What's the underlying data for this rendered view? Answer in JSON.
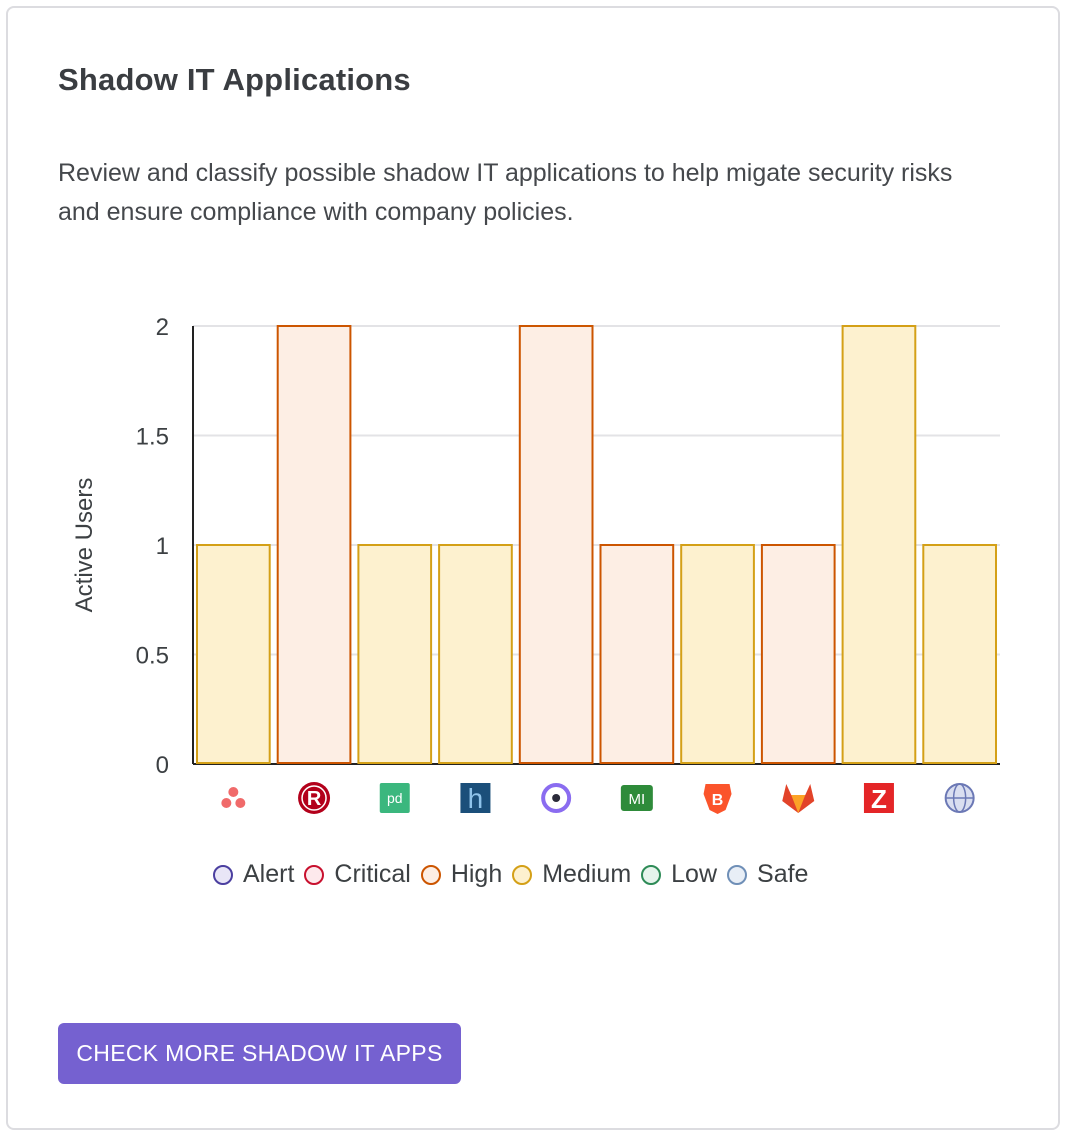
{
  "card": {
    "title": "Shadow IT Applications",
    "description": "Review and classify possible shadow IT applications to help migate security risks and ensure compliance with company policies.",
    "button_label": "CHECK MORE SHADOW IT APPS"
  },
  "legend": [
    {
      "label": "Alert",
      "stroke": "#4b3fa0",
      "fill": "#e9e6f7"
    },
    {
      "label": "Critical",
      "stroke": "#c8102e",
      "fill": "#fde9ec"
    },
    {
      "label": "High",
      "stroke": "#cc5500",
      "fill": "#fdeee4"
    },
    {
      "label": "Medium",
      "stroke": "#d4a017",
      "fill": "#fdf1cf"
    },
    {
      "label": "Low",
      "stroke": "#2e8b57",
      "fill": "#e6f4ec"
    },
    {
      "label": "Safe",
      "stroke": "#6f8fb7",
      "fill": "#e8eef6"
    }
  ],
  "chart_data": {
    "type": "bar",
    "ylabel": "Active Users",
    "ylim": [
      0,
      2
    ],
    "yticks": [
      "0",
      "0.5",
      "1",
      "1.5",
      "2"
    ],
    "grid": true,
    "legend_position": "bottom",
    "categories": [
      {
        "icon": "asana-icon",
        "value": 1,
        "risk": "Medium"
      },
      {
        "icon": "r-app-icon",
        "value": 2,
        "risk": "High"
      },
      {
        "icon": "pandadoc-icon",
        "value": 1,
        "risk": "Medium"
      },
      {
        "icon": "h-app-icon",
        "value": 1,
        "risk": "Medium"
      },
      {
        "icon": "ring-app-icon",
        "value": 2,
        "risk": "High"
      },
      {
        "icon": "mi-app-icon",
        "value": 1,
        "risk": "High"
      },
      {
        "icon": "brave-icon",
        "value": 1,
        "risk": "Medium"
      },
      {
        "icon": "gitlab-icon",
        "value": 1,
        "risk": "High"
      },
      {
        "icon": "z-app-icon",
        "value": 2,
        "risk": "Medium"
      },
      {
        "icon": "globe-icon",
        "value": 1,
        "risk": "Medium"
      }
    ]
  }
}
